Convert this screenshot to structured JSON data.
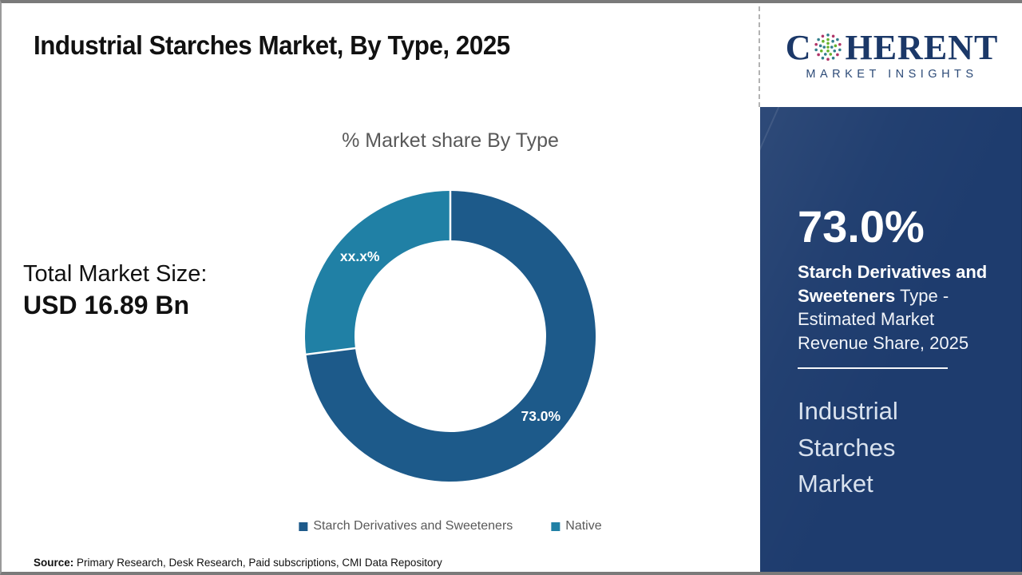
{
  "page": {
    "title": "Industrial Starches Market, By Type, 2025"
  },
  "logo": {
    "wordmark_prefix": "C",
    "wordmark_suffix": "HERENT",
    "tagline": "MARKET INSIGHTS"
  },
  "stats": {
    "label": "Total Market Size:",
    "value": "USD 16.89 Bn"
  },
  "chart_data": {
    "type": "pie",
    "subtype": "donut",
    "title": "% Market share By Type",
    "categories": [
      "Starch Derivatives and Sweeteners",
      "Native"
    ],
    "values": [
      73.0,
      27.0
    ],
    "slice_labels": [
      "73.0%",
      "xx.x%"
    ],
    "colors": [
      "#1d5a8a",
      "#2080a5"
    ],
    "start_angle_deg": 0,
    "direction": "clockwise",
    "inner_radius_ratio": 0.66,
    "legend_position": "bottom",
    "label_color": "#ffffff"
  },
  "sidebar": {
    "highlight_value": "73.0%",
    "highlight_bold": "Starch Derivatives and Sweeteners",
    "highlight_rest": "Type - Estimated Market Revenue Share, 2025",
    "market_name": "Industrial Starches Market"
  },
  "footer": {
    "source_label": "Source:",
    "source_text": "Primary Research, Desk Research, Paid subscriptions, CMI Data Repository"
  },
  "colors": {
    "panel_bg": "#1e3c6e",
    "slice_primary": "#1d5a8a",
    "slice_secondary": "#2080a5",
    "chart_title_gray": "#595959"
  }
}
